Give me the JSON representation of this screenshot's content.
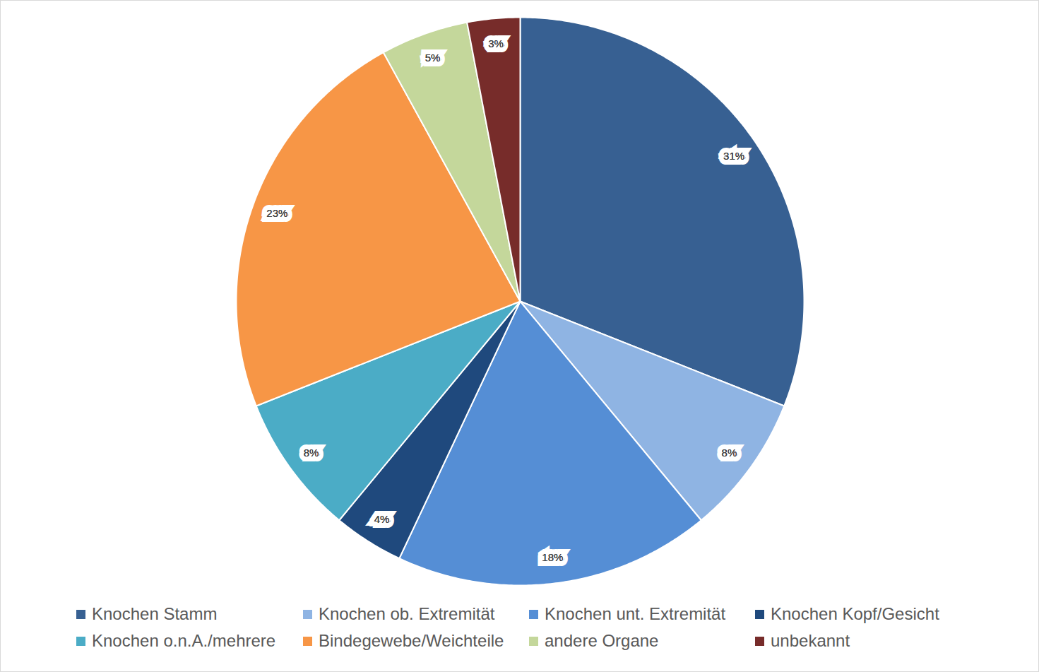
{
  "chart_data": {
    "type": "pie",
    "categories": [
      "Knochen Stamm",
      "Knochen ob. Extremität",
      "Knochen unt. Extremität",
      "Knochen Kopf/Gesicht",
      "Knochen o.n.A./mehrere",
      "Bindegewebe/Weichteile",
      "andere Organe",
      "unbekannt"
    ],
    "values": [
      31,
      8,
      18,
      4,
      8,
      23,
      5,
      3
    ],
    "value_labels": [
      "31%",
      "8%",
      "18%",
      "4%",
      "8%",
      "23%",
      "5%",
      "3%"
    ],
    "colors": [
      "#376092",
      "#8fb4e3",
      "#558ed5",
      "#1f497d",
      "#4bacc6",
      "#f79646",
      "#c4d79b",
      "#772c2a"
    ],
    "data_labels": true,
    "legend": "bottom"
  }
}
